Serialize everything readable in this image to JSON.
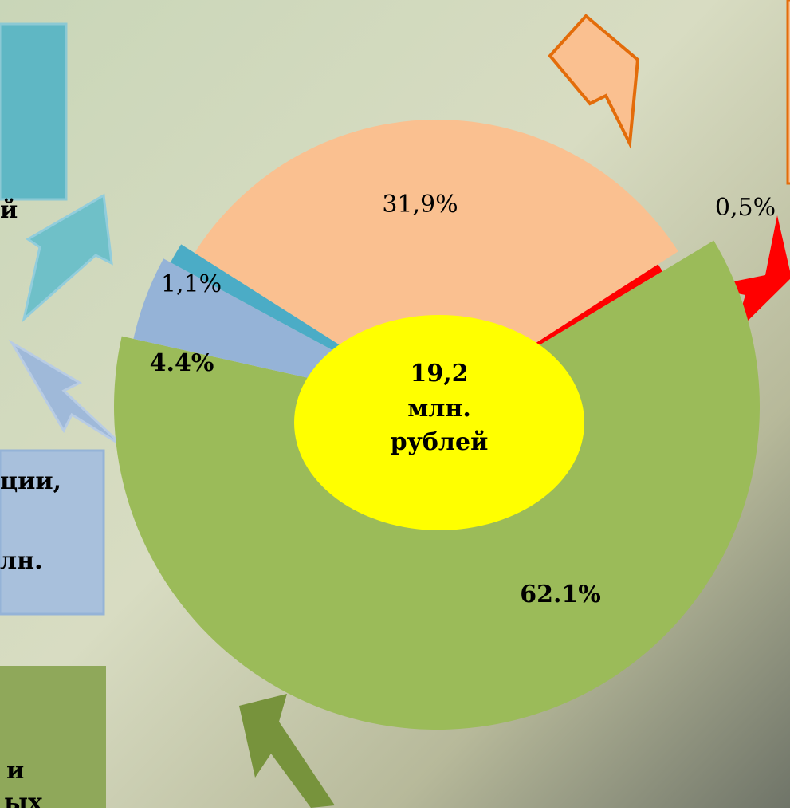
{
  "chart_data": {
    "type": "pie",
    "values": [
      31.9,
      0.5,
      62.1,
      4.4,
      1.1
    ],
    "value_labels": [
      "31,9%",
      "0,5%",
      "62.1%",
      "4.4%",
      "1,1%"
    ],
    "colors": [
      "#fac090",
      "#ff0000",
      "#9bbb59",
      "#95b3d7",
      "#4bacc6"
    ],
    "center_label": [
      "19,2",
      "млн.",
      "рублей"
    ]
  },
  "side_texts": [
    "й",
    "ции,",
    "лн.",
    "и",
    "ых"
  ]
}
